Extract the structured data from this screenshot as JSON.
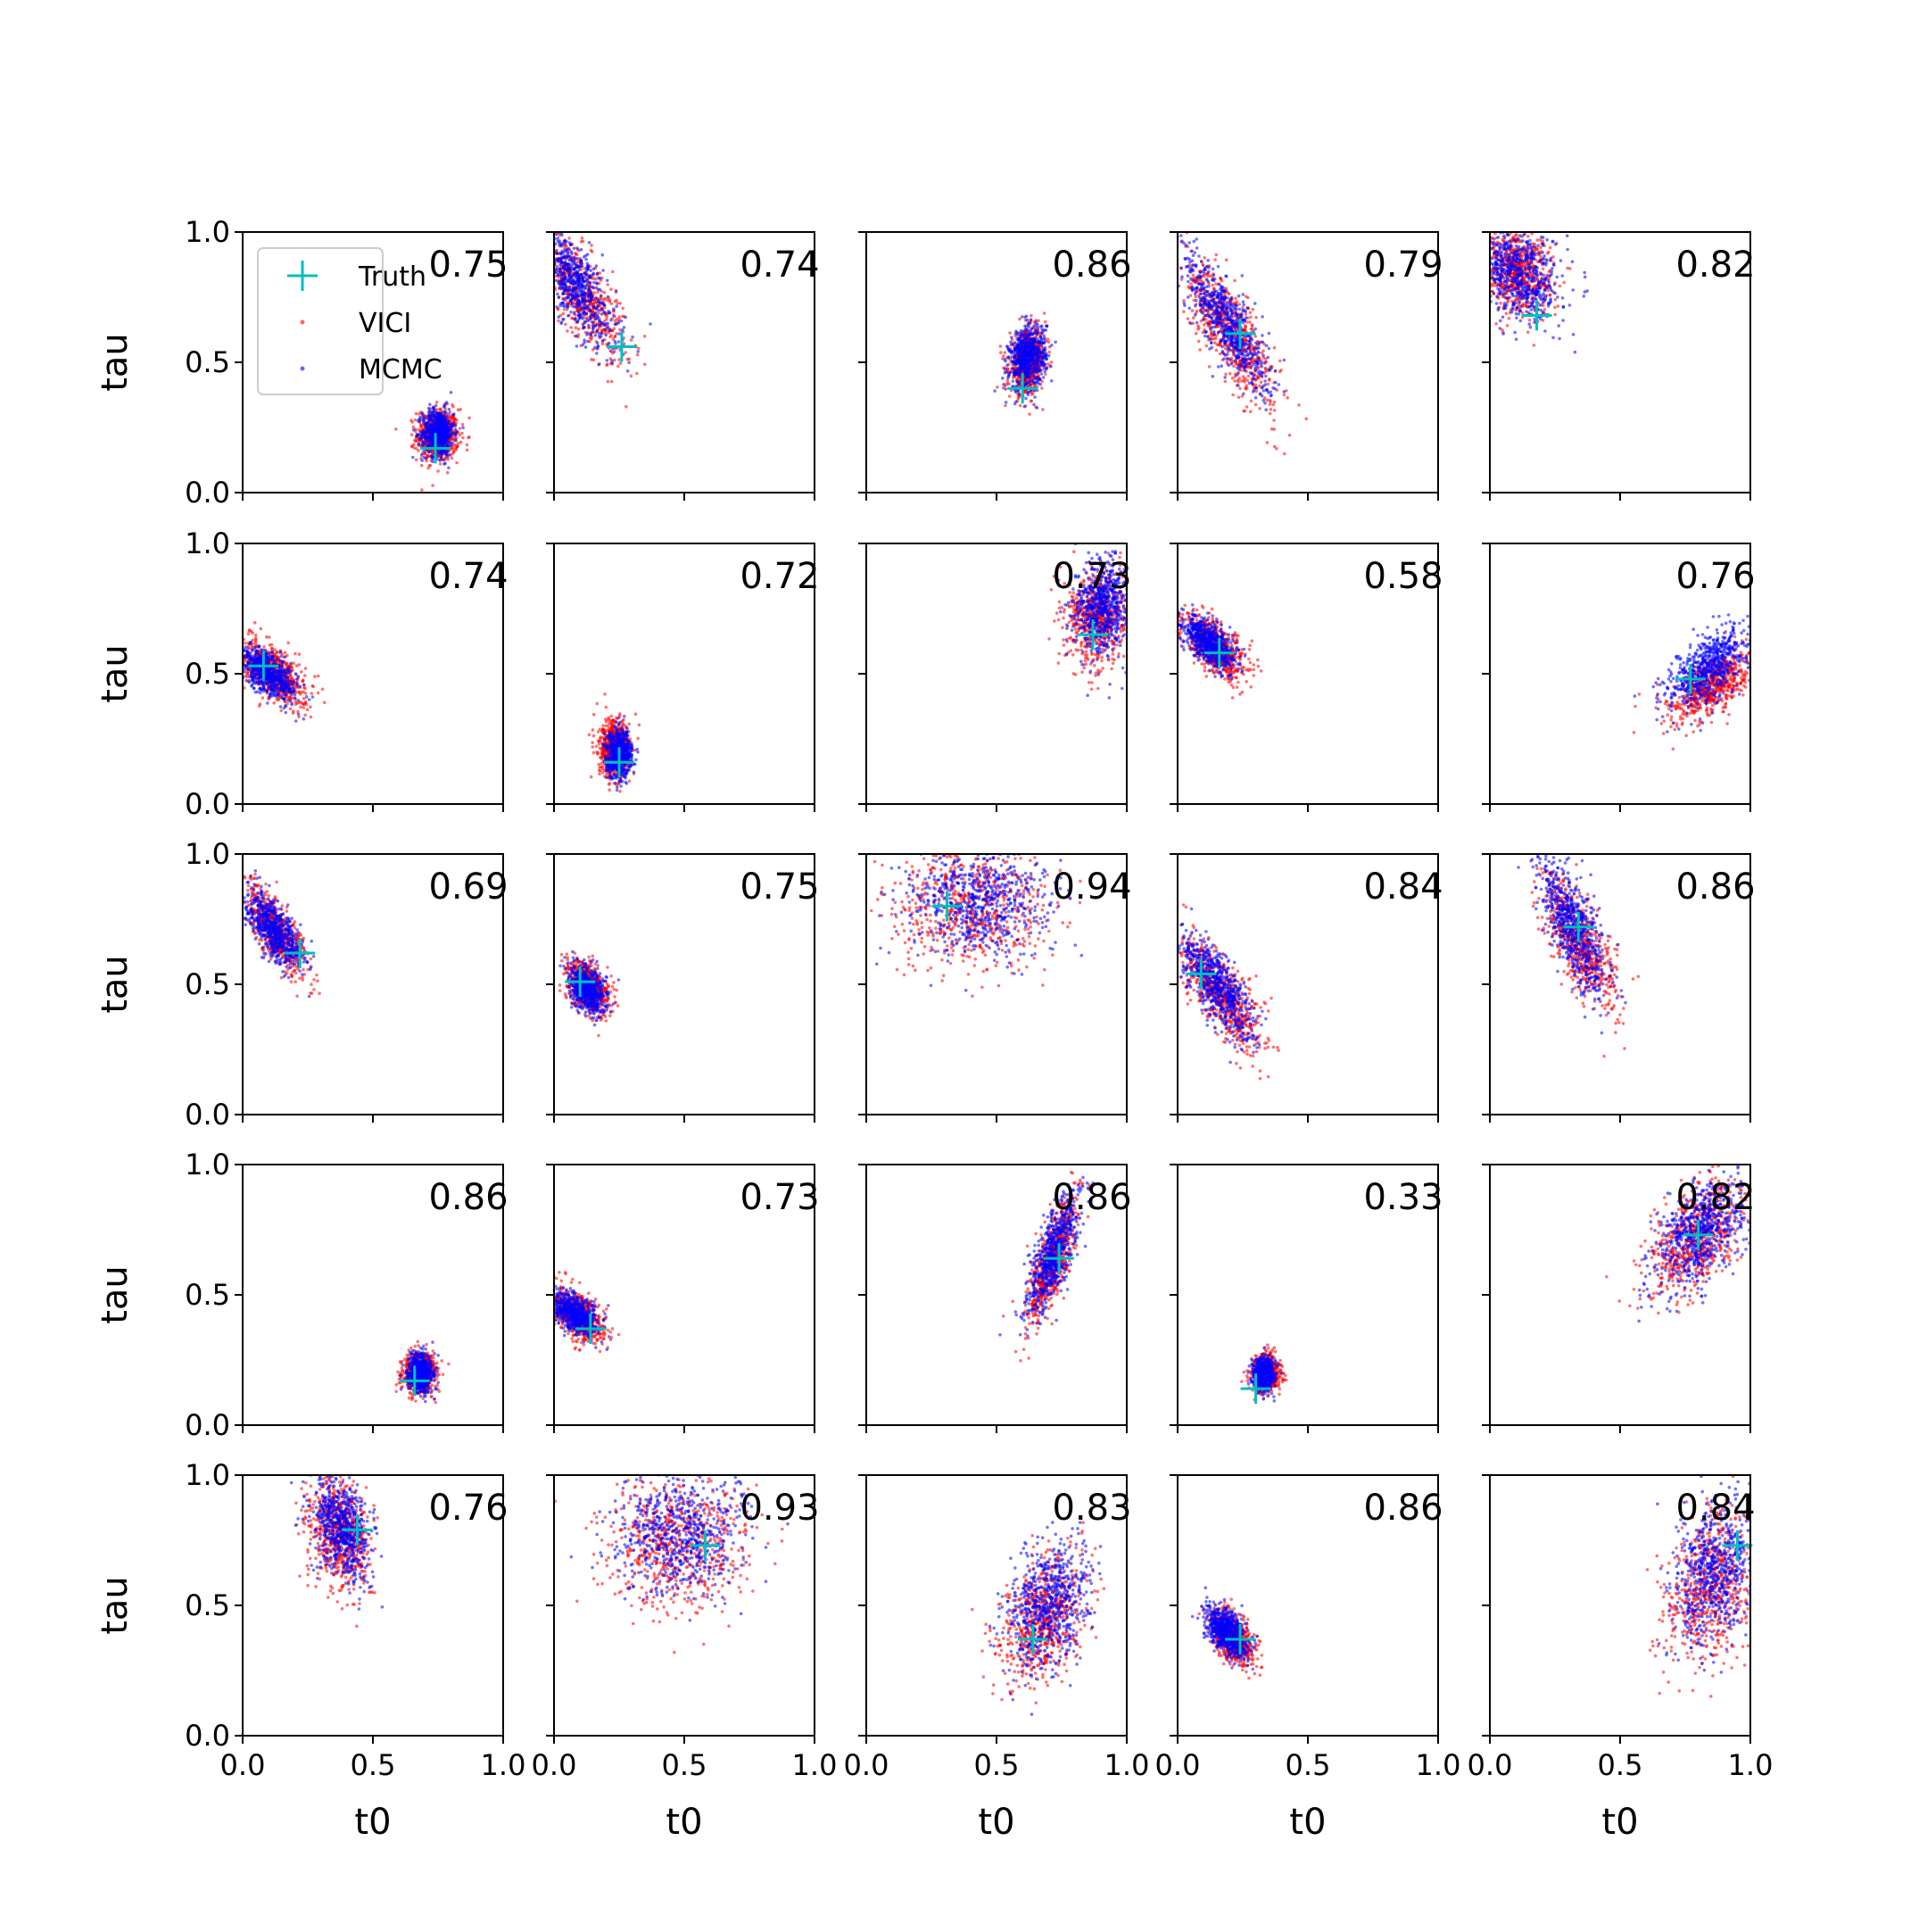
{
  "chart_data": {
    "type": "scatter",
    "grid": false,
    "xlim": [
      0.0,
      1.0
    ],
    "ylim": [
      0.0,
      1.0
    ],
    "xlabel": "t0",
    "ylabel": "tau",
    "x_ticks": [
      "0.0",
      "0.5",
      "1.0"
    ],
    "y_ticks": [
      "0.0",
      "0.5",
      "1.0"
    ],
    "legend": {
      "location": "top-left of first panel",
      "entries": [
        {
          "label": "Truth",
          "marker": "+",
          "color": "#00bfbf"
        },
        {
          "label": "VICI",
          "marker": "dot",
          "color": "#ff0000"
        },
        {
          "label": "MCMC",
          "marker": "dot",
          "color": "#0000ff"
        }
      ]
    },
    "series_colors": {
      "truth": "#00bfbf",
      "vici": "#ff0000",
      "mcmc": "#0000ff"
    },
    "layout": {
      "rows": 5,
      "cols": 5
    },
    "panels": [
      {
        "score": "0.75",
        "truth": [
          0.74,
          0.17
        ],
        "vici": {
          "center": [
            0.75,
            0.22
          ],
          "spread": [
            0.04,
            0.05
          ],
          "rho": 0.0
        },
        "mcmc": {
          "center": [
            0.75,
            0.23
          ],
          "spread": [
            0.03,
            0.045
          ],
          "rho": 0.0
        }
      },
      {
        "score": "0.74",
        "truth": [
          0.26,
          0.56
        ],
        "vici": {
          "center": [
            0.09,
            0.78
          ],
          "spread": [
            0.09,
            0.13
          ],
          "rho": -0.75
        },
        "mcmc": {
          "center": [
            0.08,
            0.8
          ],
          "spread": [
            0.08,
            0.12
          ],
          "rho": -0.75
        }
      },
      {
        "score": "0.86",
        "truth": [
          0.6,
          0.4
        ],
        "vici": {
          "center": [
            0.62,
            0.5
          ],
          "spread": [
            0.035,
            0.06
          ],
          "rho": 0.2
        },
        "mcmc": {
          "center": [
            0.62,
            0.52
          ],
          "spread": [
            0.035,
            0.06
          ],
          "rho": 0.2
        }
      },
      {
        "score": "0.79",
        "truth": [
          0.24,
          0.61
        ],
        "vici": {
          "center": [
            0.2,
            0.62
          ],
          "spread": [
            0.09,
            0.14
          ],
          "rho": -0.8
        },
        "mcmc": {
          "center": [
            0.19,
            0.65
          ],
          "spread": [
            0.08,
            0.13
          ],
          "rho": -0.8
        }
      },
      {
        "score": "0.82",
        "truth": [
          0.18,
          0.68
        ],
        "vici": {
          "center": [
            0.1,
            0.85
          ],
          "spread": [
            0.07,
            0.08
          ],
          "rho": -0.2
        },
        "mcmc": {
          "center": [
            0.11,
            0.84
          ],
          "spread": [
            0.08,
            0.09
          ],
          "rho": -0.2
        }
      },
      {
        "score": "0.74",
        "truth": [
          0.08,
          0.53
        ],
        "vici": {
          "center": [
            0.12,
            0.5
          ],
          "spread": [
            0.06,
            0.06
          ],
          "rho": -0.6
        },
        "mcmc": {
          "center": [
            0.1,
            0.5
          ],
          "spread": [
            0.055,
            0.05
          ],
          "rho": -0.6
        }
      },
      {
        "score": "0.72",
        "truth": [
          0.25,
          0.16
        ],
        "vici": {
          "center": [
            0.23,
            0.21
          ],
          "spread": [
            0.03,
            0.055
          ],
          "rho": 0.0
        },
        "mcmc": {
          "center": [
            0.25,
            0.19
          ],
          "spread": [
            0.025,
            0.045
          ],
          "rho": 0.0
        }
      },
      {
        "score": "0.73",
        "truth": [
          0.87,
          0.65
        ],
        "vici": {
          "center": [
            0.89,
            0.72
          ],
          "spread": [
            0.06,
            0.09
          ],
          "rho": 0.1
        },
        "mcmc": {
          "center": [
            0.91,
            0.76
          ],
          "spread": [
            0.055,
            0.09
          ],
          "rho": 0.1
        }
      },
      {
        "score": "0.58",
        "truth": [
          0.16,
          0.58
        ],
        "vici": {
          "center": [
            0.14,
            0.6
          ],
          "spread": [
            0.06,
            0.06
          ],
          "rho": -0.6
        },
        "mcmc": {
          "center": [
            0.12,
            0.62
          ],
          "spread": [
            0.05,
            0.05
          ],
          "rho": -0.6
        }
      },
      {
        "score": "0.76",
        "truth": [
          0.77,
          0.48
        ],
        "vici": {
          "center": [
            0.85,
            0.45
          ],
          "spread": [
            0.08,
            0.07
          ],
          "rho": 0.6
        },
        "mcmc": {
          "center": [
            0.84,
            0.52
          ],
          "spread": [
            0.08,
            0.08
          ],
          "rho": 0.6
        }
      },
      {
        "score": "0.69",
        "truth": [
          0.22,
          0.62
        ],
        "vici": {
          "center": [
            0.13,
            0.7
          ],
          "spread": [
            0.06,
            0.08
          ],
          "rho": -0.7
        },
        "mcmc": {
          "center": [
            0.12,
            0.71
          ],
          "spread": [
            0.055,
            0.07
          ],
          "rho": -0.7
        }
      },
      {
        "score": "0.75",
        "truth": [
          0.1,
          0.51
        ],
        "vici": {
          "center": [
            0.13,
            0.49
          ],
          "spread": [
            0.04,
            0.05
          ],
          "rho": -0.4
        },
        "mcmc": {
          "center": [
            0.13,
            0.48
          ],
          "spread": [
            0.035,
            0.045
          ],
          "rho": -0.4
        }
      },
      {
        "score": "0.94",
        "truth": [
          0.31,
          0.8
        ],
        "vici": {
          "center": [
            0.4,
            0.8
          ],
          "spread": [
            0.15,
            0.12
          ],
          "rho": 0.0
        },
        "mcmc": {
          "center": [
            0.42,
            0.82
          ],
          "spread": [
            0.14,
            0.11
          ],
          "rho": 0.0
        }
      },
      {
        "score": "0.84",
        "truth": [
          0.09,
          0.54
        ],
        "vici": {
          "center": [
            0.16,
            0.47
          ],
          "spread": [
            0.08,
            0.11
          ],
          "rho": -0.75
        },
        "mcmc": {
          "center": [
            0.15,
            0.49
          ],
          "spread": [
            0.07,
            0.1
          ],
          "rho": -0.75
        }
      },
      {
        "score": "0.86",
        "truth": [
          0.34,
          0.72
        ],
        "vici": {
          "center": [
            0.34,
            0.66
          ],
          "spread": [
            0.07,
            0.13
          ],
          "rho": -0.7
        },
        "mcmc": {
          "center": [
            0.32,
            0.72
          ],
          "spread": [
            0.065,
            0.13
          ],
          "rho": -0.7
        }
      },
      {
        "score": "0.86",
        "truth": [
          0.66,
          0.17
        ],
        "vici": {
          "center": [
            0.68,
            0.2
          ],
          "spread": [
            0.03,
            0.04
          ],
          "rho": 0.0
        },
        "mcmc": {
          "center": [
            0.68,
            0.2
          ],
          "spread": [
            0.025,
            0.035
          ],
          "rho": 0.0
        }
      },
      {
        "score": "0.73",
        "truth": [
          0.14,
          0.37
        ],
        "vici": {
          "center": [
            0.09,
            0.42
          ],
          "spread": [
            0.05,
            0.05
          ],
          "rho": -0.5
        },
        "mcmc": {
          "center": [
            0.08,
            0.43
          ],
          "spread": [
            0.045,
            0.04
          ],
          "rho": -0.5
        }
      },
      {
        "score": "0.86",
        "truth": [
          0.74,
          0.64
        ],
        "vici": {
          "center": [
            0.71,
            0.62
          ],
          "spread": [
            0.05,
            0.12
          ],
          "rho": 0.75
        },
        "mcmc": {
          "center": [
            0.72,
            0.66
          ],
          "spread": [
            0.05,
            0.12
          ],
          "rho": 0.75
        }
      },
      {
        "score": "0.33",
        "truth": [
          0.3,
          0.14
        ],
        "vici": {
          "center": [
            0.34,
            0.2
          ],
          "spread": [
            0.025,
            0.035
          ],
          "rho": 0.0
        },
        "mcmc": {
          "center": [
            0.33,
            0.19
          ],
          "spread": [
            0.02,
            0.03
          ],
          "rho": 0.0
        }
      },
      {
        "score": "0.82",
        "truth": [
          0.8,
          0.73
        ],
        "vici": {
          "center": [
            0.8,
            0.72
          ],
          "spread": [
            0.09,
            0.11
          ],
          "rho": 0.5
        },
        "mcmc": {
          "center": [
            0.81,
            0.74
          ],
          "spread": [
            0.09,
            0.11
          ],
          "rho": 0.5
        }
      },
      {
        "score": "0.76",
        "truth": [
          0.44,
          0.79
        ],
        "vici": {
          "center": [
            0.37,
            0.78
          ],
          "spread": [
            0.06,
            0.11
          ],
          "rho": -0.3
        },
        "mcmc": {
          "center": [
            0.38,
            0.8
          ],
          "spread": [
            0.055,
            0.1
          ],
          "rho": -0.3
        }
      },
      {
        "score": "0.93",
        "truth": [
          0.58,
          0.73
        ],
        "vici": {
          "center": [
            0.48,
            0.75
          ],
          "spread": [
            0.14,
            0.13
          ],
          "rho": 0.0
        },
        "mcmc": {
          "center": [
            0.48,
            0.77
          ],
          "spread": [
            0.13,
            0.12
          ],
          "rho": 0.0
        }
      },
      {
        "score": "0.83",
        "truth": [
          0.64,
          0.37
        ],
        "vici": {
          "center": [
            0.68,
            0.45
          ],
          "spread": [
            0.08,
            0.12
          ],
          "rho": 0.3
        },
        "mcmc": {
          "center": [
            0.7,
            0.5
          ],
          "spread": [
            0.08,
            0.12
          ],
          "rho": 0.3
        }
      },
      {
        "score": "0.86",
        "truth": [
          0.24,
          0.37
        ],
        "vici": {
          "center": [
            0.21,
            0.38
          ],
          "spread": [
            0.04,
            0.05
          ],
          "rho": -0.5
        },
        "mcmc": {
          "center": [
            0.19,
            0.4
          ],
          "spread": [
            0.04,
            0.05
          ],
          "rho": -0.5
        }
      },
      {
        "score": "0.84",
        "truth": [
          0.95,
          0.73
        ],
        "vici": {
          "center": [
            0.85,
            0.58
          ],
          "spread": [
            0.09,
            0.14
          ],
          "rho": 0.3
        },
        "mcmc": {
          "center": [
            0.86,
            0.62
          ],
          "spread": [
            0.08,
            0.14
          ],
          "rho": 0.3
        }
      }
    ]
  }
}
